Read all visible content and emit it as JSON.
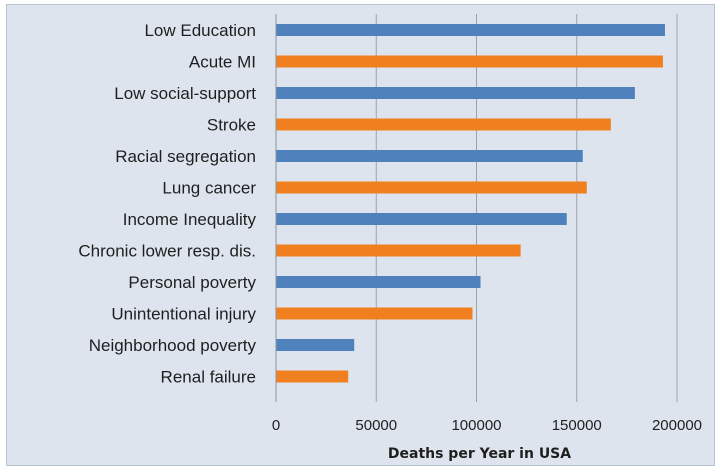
{
  "chart_data": {
    "type": "bar",
    "orientation": "horizontal",
    "title": "",
    "xlabel": "Deaths per Year in USA",
    "ylabel": "",
    "xlim": [
      0,
      200000
    ],
    "x_ticks": [
      "0",
      "50000",
      "100000",
      "150000",
      "200000"
    ],
    "grid": "vertical major gridlines",
    "legend": "none",
    "colors": {
      "blue": "#4f81bd",
      "orange": "#f07f1f"
    },
    "categories": [
      "Low Education",
      "Acute MI",
      "Low social-support",
      "Stroke",
      "Racial segregation",
      "Lung cancer",
      "Income Inequality",
      "Chronic lower resp. dis.",
      "Personal poverty",
      "Unintentional injury",
      "Neighborhood poverty",
      "Renal failure"
    ],
    "values": [
      194000,
      193000,
      179000,
      167000,
      153000,
      155000,
      145000,
      122000,
      102000,
      98000,
      39000,
      36000
    ],
    "bar_colors": [
      "blue",
      "orange",
      "blue",
      "orange",
      "blue",
      "orange",
      "blue",
      "orange",
      "blue",
      "orange",
      "blue",
      "orange"
    ]
  }
}
